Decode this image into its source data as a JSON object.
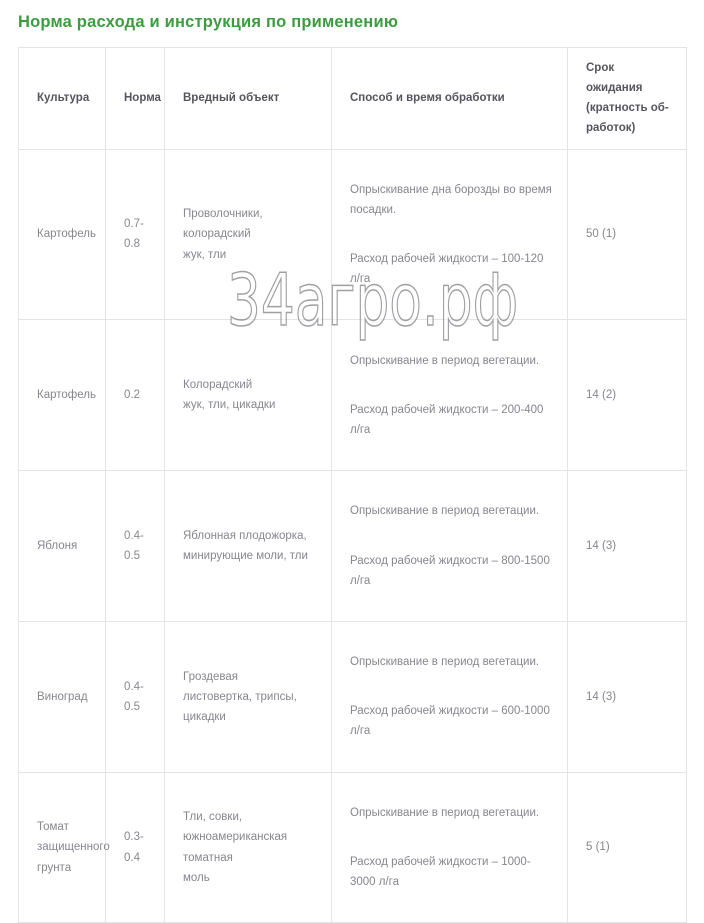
{
  "page": {
    "title": "Норма расхода и инструкция по применению"
  },
  "watermark": {
    "text": "34агро.рф"
  },
  "table": {
    "headers": [
      "Культура",
      "Норма",
      "Вредный объект",
      "Способ и время обработки",
      "Срок ожидания\n(кратность об-\nработок)"
    ],
    "rows": [
      {
        "culture": "Картофель",
        "rate": "0.7-0.8",
        "pest": "Проволочники, колорадский\nжук, тли",
        "method_1": "Опрыскивание дна борозды во время\nпосадки.",
        "method_2": "Расход рабочей жидкости – 100-120 л/га",
        "waiting": "50 (1)"
      },
      {
        "culture": "Картофель",
        "rate": "0.2",
        "pest": "Колорадский\nжук, тли, цикадки",
        "method_1": "Опрыскивание в период вегетации.",
        "method_2": "Расход рабочей жидкости – 200-400 л/га",
        "waiting": "14 (2)"
      },
      {
        "culture": "Яблоня",
        "rate": "0.4-0.5",
        "pest": "Яблонная плодожорка,\nминирующие моли, тли",
        "method_1": "Опрыскивание в период вегетации.",
        "method_2": "Расход рабочей жидкости – 800-1500 л/га",
        "waiting": "14 (3)"
      },
      {
        "culture": "Виноград",
        "rate": "0.4-0.5",
        "pest": "Гроздевая\nлистовертка, трипсы, цикадки",
        "method_1": "Опрыскивание в период вегетации.",
        "method_2": "Расход рабочей жидкости – 600-1000 л/га",
        "waiting": "14 (3)"
      },
      {
        "culture": "Томат\nзащищенного\nгрунта",
        "rate": "0.3-0.4",
        "pest": "Тли, совки,\nюжноамериканская томатная\nмоль",
        "method_1": "Опрыскивание в период вегетации.",
        "method_2": "Расход рабочей жидкости – 1000-3000 л/га",
        "waiting": "5 (1)"
      }
    ]
  }
}
